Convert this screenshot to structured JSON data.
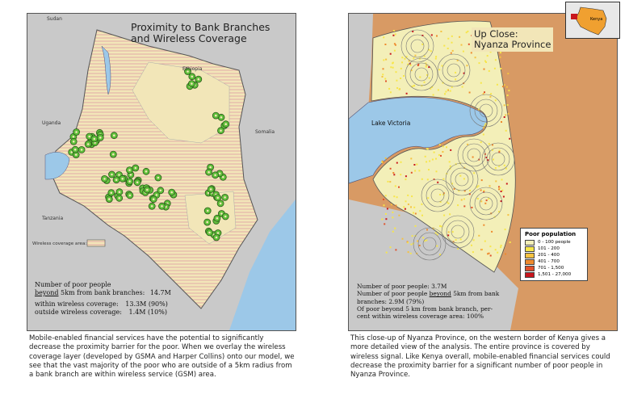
{
  "left": {
    "title_line1": "Proximity to Bank Branches",
    "title_line2": "and Wireless Coverage",
    "labels": {
      "sudan": "Sudan",
      "ethiopia": "Ethiopia",
      "uganda": "Uganda",
      "somalia": "Somalia",
      "tanzania": "Tanzania"
    },
    "legend_label": "Wireless coverage area:",
    "stats": {
      "line1": "Number of poor people",
      "line2_underlined": "beyond",
      "line2_rest": " 5km from bank branches:",
      "line2_value": "14.7M",
      "within_label": "within wireless coverage:",
      "within_value": "13.3M (90%)",
      "outside_label": "outside wireless coverage:",
      "outside_value": "1.4M (10%)"
    },
    "caption": "Mobile-enabled financial services have the potential to significantly decrease the proximity barrier for the poor. When we overlay the wireless coverage layer (developed by GSMA and Harper Collins) onto our model, we see that the vast majority of the poor who are outside of a 5km radius from a bank branch are within wireless service (GSM) area."
  },
  "right": {
    "title_line1": "Up Close:",
    "title_line2": "Nyanza Province",
    "lake_label": "Lake Victoria",
    "inset_label": "Kenya",
    "legend": {
      "title": "Poor population",
      "items": [
        {
          "label": "0 - 100 people",
          "color": "#f3efb8"
        },
        {
          "label": "101 - 200",
          "color": "#f7e64a"
        },
        {
          "label": "201 - 400",
          "color": "#f5c242"
        },
        {
          "label": "401 - 700",
          "color": "#ee8a2e"
        },
        {
          "label": "701 - 1,500",
          "color": "#e0502a"
        },
        {
          "label": "1,501 - 27,000",
          "color": "#c8161d"
        }
      ]
    },
    "stats": {
      "line1": "Number of poor people: 3.7M",
      "line2a": "Number of poor people ",
      "line2_underlined": "beyond",
      "line2b": " 5km from bank",
      "line3": "branches: 2.9M (79%)",
      "line4": "Of poor beyond 5 km from bank branch, per-",
      "line5": "cent within wireless coverage area: 100%"
    },
    "caption": "This close-up of Nyanza Province, on the western border of Kenya gives a more detailed view of the analysis. The entire province is covered by wireless signal. Like Kenya overall, mobile-enabled financial services could decrease the proximity barrier for a significant number of poor people in Nyanza Province."
  },
  "colors": {
    "kenya_fill": "#f2e6b8",
    "coverage_hatch": "#e8b0b0",
    "water": "#9cc8e8",
    "neighbors": "#c9c9c9",
    "branch_ring": "#3a9a28"
  }
}
